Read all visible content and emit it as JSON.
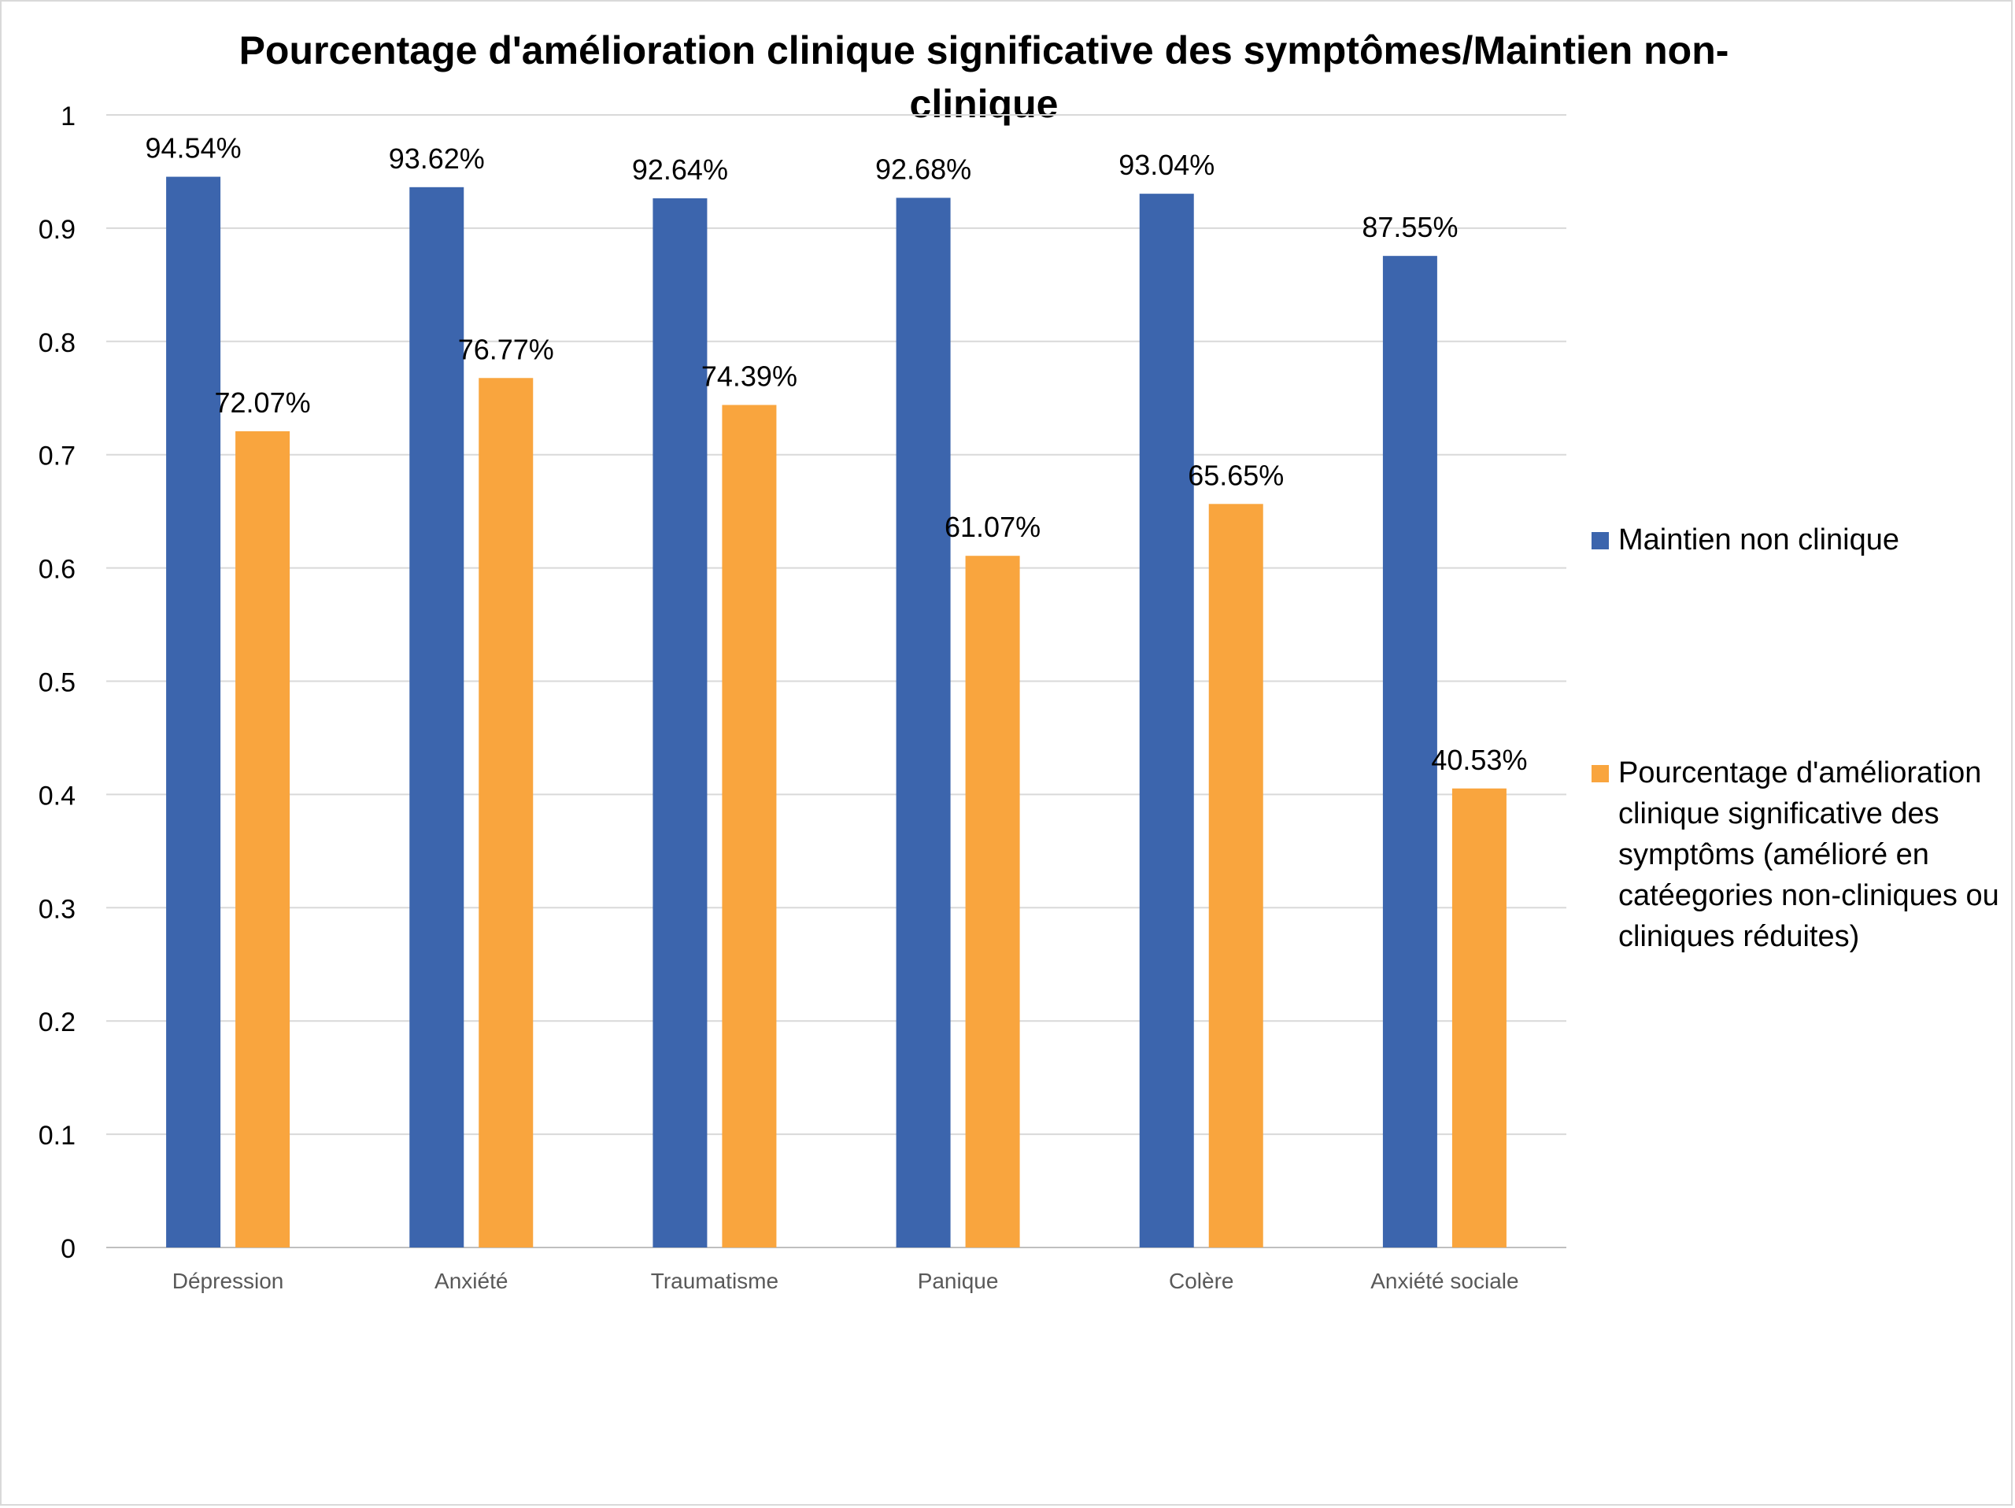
{
  "chart_data": {
    "type": "bar",
    "title": "Pourcentage d'amélioration clinique significative des symptômes/Maintien non-clinique",
    "categories": [
      "Dépression",
      "Anxiété",
      "Traumatisme",
      "Panique",
      "Colère",
      "Anxiété sociale"
    ],
    "series": [
      {
        "name": "Maintien non clinique",
        "color": "#3c65ad",
        "values": [
          0.9454,
          0.9362,
          0.9264,
          0.9268,
          0.9304,
          0.8755
        ],
        "labels": [
          "94.54%",
          "93.62%",
          "92.64%",
          "92.68%",
          "93.04%",
          "87.55%"
        ]
      },
      {
        "name": "Pourcentage d'amélioration clinique significative des symptôms (amélioré en catéegories non-cliniques ou cliniques réduites)",
        "color": "#f9a53e",
        "values": [
          0.7207,
          0.7677,
          0.7439,
          0.6107,
          0.6565,
          0.4053
        ],
        "labels": [
          "72.07%",
          "76.77%",
          "74.39%",
          "61.07%",
          "65.65%",
          "40.53%"
        ]
      }
    ],
    "ylim": [
      0,
      1
    ],
    "yticks": [
      "0",
      "0.1",
      "0.2",
      "0.3",
      "0.4",
      "0.5",
      "0.6",
      "0.7",
      "0.8",
      "0.9",
      "1"
    ],
    "grid": true,
    "legend_position": "right"
  }
}
